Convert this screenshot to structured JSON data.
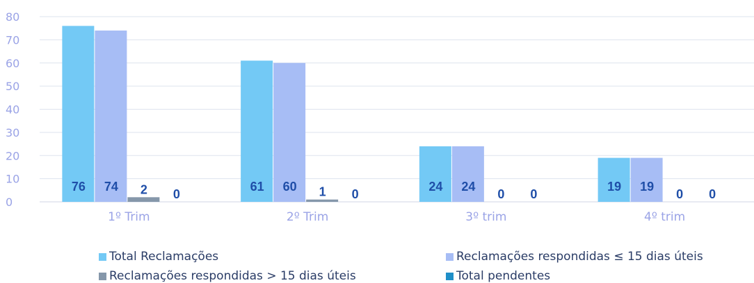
{
  "chart_data": {
    "type": "bar",
    "categories": [
      "1º Trim",
      "2º Trim",
      "3º trim",
      "4º trim"
    ],
    "series": [
      {
        "name": "Total Reclamações",
        "values": [
          76,
          61,
          24,
          19
        ],
        "color": "#73c9f5"
      },
      {
        "name": "Reclamações respondidas ≤ 15 dias úteis",
        "values": [
          74,
          60,
          24,
          19
        ],
        "color": "#a7bdf5"
      },
      {
        "name": "Reclamações respondidas > 15 dias úteis",
        "values": [
          2,
          1,
          0,
          0
        ],
        "color": "#8597aa"
      },
      {
        "name": "Total pendentes",
        "values": [
          0,
          0,
          0,
          0
        ],
        "color": "#1f8fc8"
      }
    ],
    "ylim": [
      0,
      80
    ],
    "yticks": [
      0,
      10,
      20,
      30,
      40,
      50,
      60,
      70,
      80
    ],
    "grid": true,
    "legend_position": "bottom",
    "data_labels": true
  }
}
